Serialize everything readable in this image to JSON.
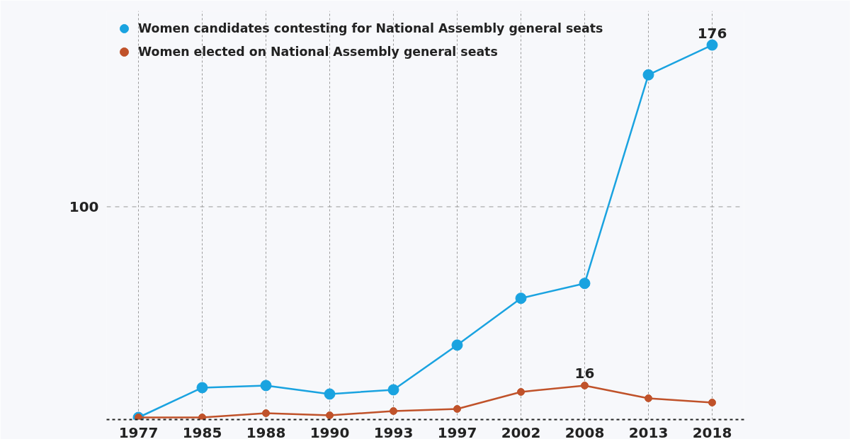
{
  "chart_data": {
    "type": "line",
    "ylim": [
      0,
      192
    ],
    "categories": [
      "1977",
      "1985",
      "1988",
      "1990",
      "1993",
      "1997",
      "2002",
      "2008",
      "2013",
      "2018"
    ],
    "series": [
      {
        "name": "Women candidates contesting for National Assembly general seats",
        "color": "#1aa3e0",
        "values": [
          1,
          15,
          16,
          12,
          14,
          35,
          57,
          64,
          162,
          176
        ],
        "value_labels": [
          null,
          null,
          null,
          null,
          null,
          null,
          null,
          null,
          null,
          "176"
        ]
      },
      {
        "name": "Women elected on National Assembly general seats",
        "color": "#c0522a",
        "values": [
          1,
          1,
          3,
          2,
          4,
          5,
          13,
          16,
          10,
          8
        ],
        "value_labels": [
          null,
          null,
          null,
          null,
          null,
          null,
          null,
          "16",
          null,
          null
        ]
      }
    ],
    "ref_lines": [
      {
        "axis": "y",
        "value": 100,
        "label": "100",
        "line_style": "dashed",
        "color": "#999999"
      }
    ],
    "grid": "x",
    "legend": "top left",
    "marker": "circle",
    "line_style": "solid"
  }
}
